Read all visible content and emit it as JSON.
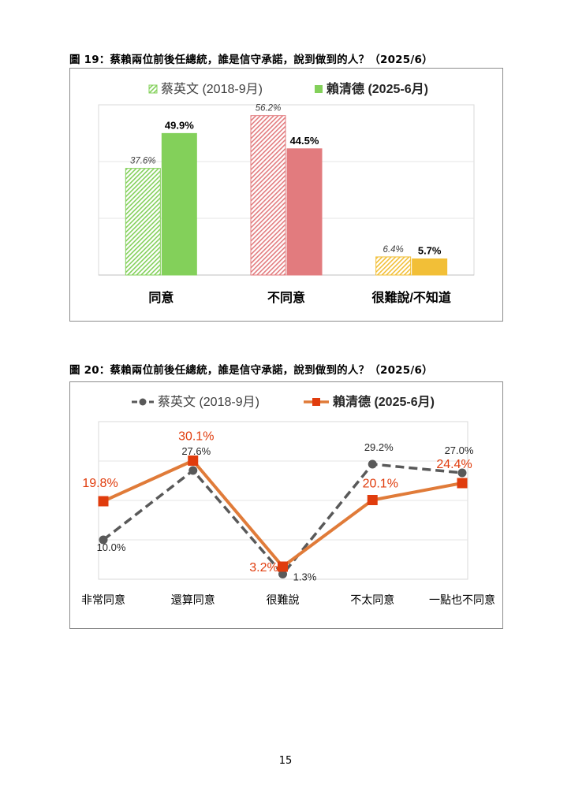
{
  "page": {
    "number": "15"
  },
  "figure19": {
    "title": "圖 19：蔡賴兩位前後任總統，誰是信守承諾，說到做到的人？（2025/6）",
    "chart_data": {
      "type": "bar",
      "categories": [
        "同意",
        "不同意",
        "很難說/不知道"
      ],
      "series": [
        {
          "name": "蔡英文 (2018-9月)",
          "values": [
            37.6,
            56.2,
            6.4
          ],
          "labels": [
            "37.6%",
            "56.2%",
            "6.4%"
          ],
          "style": "hatched"
        },
        {
          "name": "賴清德 (2025-6月)",
          "values": [
            49.9,
            44.5,
            5.7
          ],
          "labels": [
            "49.9%",
            "44.5%",
            "5.7%"
          ],
          "style": "solid"
        }
      ],
      "category_colors": [
        "#83d05a",
        "#e27b7e",
        "#f2bf37"
      ],
      "ylim": [
        0,
        60
      ],
      "grid": true,
      "legend": "top-center"
    }
  },
  "figure20": {
    "title": "圖 20：蔡賴兩位前後任總統，誰是信守承諾，說到做到的人？（2025/6）",
    "chart_data": {
      "type": "line",
      "categories": [
        "非常同意",
        "還算同意",
        "很難說",
        "不太同意",
        "一點也不同意"
      ],
      "series": [
        {
          "name": "蔡英文 (2018-9月)",
          "values": [
            10.0,
            27.6,
            1.3,
            29.2,
            27.0
          ],
          "labels": [
            "10.0%",
            "27.6%",
            "1.3%",
            "29.2%",
            "27.0%"
          ],
          "color": "#595959",
          "style": "dashed"
        },
        {
          "name": "賴清德 (2025-6月)",
          "values": [
            19.8,
            30.1,
            3.2,
            20.1,
            24.4
          ],
          "labels": [
            "19.8%",
            "30.1%",
            "3.2%",
            "20.1%",
            "24.4%"
          ],
          "color": "#e07b39",
          "marker_color": "#e03c0d",
          "label_color": "#e03c0d",
          "style": "solid"
        }
      ],
      "ylim": [
        0,
        40
      ],
      "grid": true,
      "legend": "top-center"
    }
  }
}
